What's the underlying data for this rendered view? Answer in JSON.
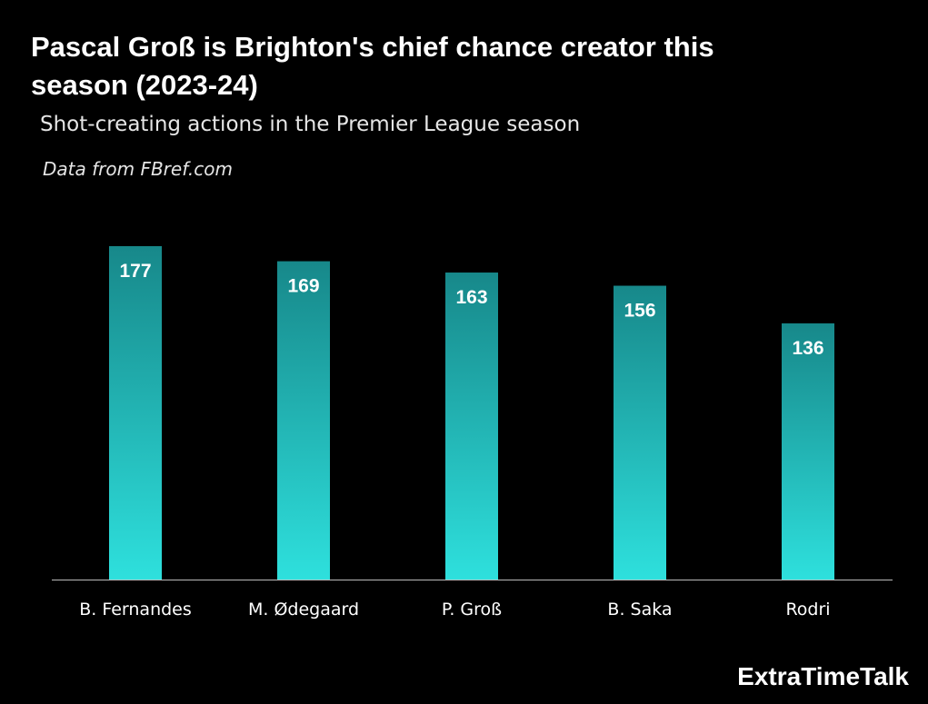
{
  "title": "Pascal Groß is Brighton's chief chance creator this season (2023-24)",
  "subtitle": "Shot-creating actions in the Premier League season",
  "source": "Data from FBref.com",
  "brand": "ExtraTimeTalk",
  "colors": {
    "background": "#000000",
    "bar_top": "#17888a",
    "bar_bottom": "#2ee0dd",
    "text": "#ffffff",
    "axis_line": "#bbbbbb"
  },
  "chart_data": {
    "type": "bar",
    "categories": [
      "B. Fernandes",
      "M. Ødegaard",
      "P. Groß",
      "B. Saka",
      "Rodri"
    ],
    "values": [
      177,
      169,
      163,
      156,
      136
    ],
    "title": "Pascal Groß is Brighton's chief chance creator this season (2023-24)",
    "subtitle": "Shot-creating actions in the Premier League season",
    "xlabel": "",
    "ylabel": "",
    "ylim": [
      0,
      177
    ],
    "grid": false,
    "legend": "none",
    "data_labels": "inside-top"
  }
}
